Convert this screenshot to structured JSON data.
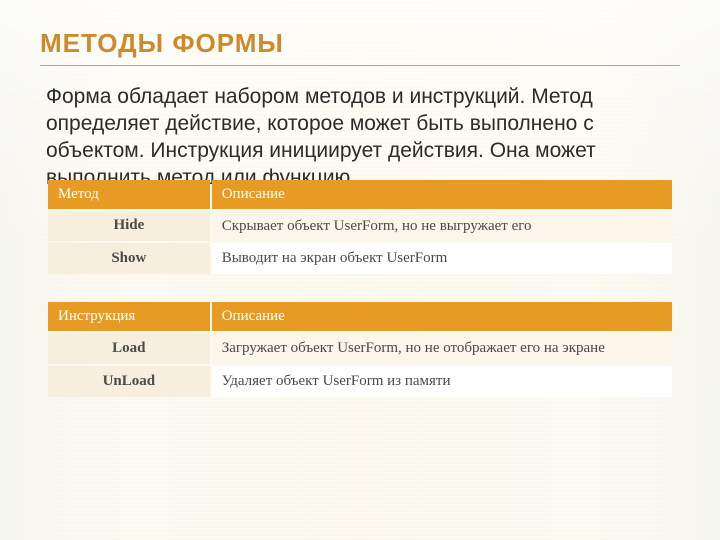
{
  "colors": {
    "title": "#ce8a2a",
    "rule": "#d9a33e",
    "header_bg": "#e79a24",
    "header_text": "#ffffff",
    "key_bg": "#f8eedd",
    "desc_bg_alt1": "#fbf5ea",
    "desc_bg_alt2": "#ffffff",
    "body_text": "#2b2b2b",
    "cell_text": "#4a4a4a"
  },
  "title": "Методы формы",
  "paragraph": "Форма обладает набором методов и инструкций. Метод определяет действие, которое может быть выполнено с объектом. Инструкция инициирует действия. Она может выполнить метод или функцию.",
  "tables": [
    {
      "columns": [
        "Метод",
        "Описание"
      ],
      "rows": [
        {
          "key": "Hide",
          "desc": "Скрывает объект UserForm, но не выгружает его"
        },
        {
          "key": "Show",
          "desc": "Выводит на экран объект UserForm"
        }
      ]
    },
    {
      "columns": [
        "Инструкция",
        "Описание"
      ],
      "rows": [
        {
          "key": "Load",
          "desc": "Загружает объект UserForm, но не отображает его на экране"
        },
        {
          "key": "UnLoad",
          "desc": "Удаляет объект UserForm из памяти"
        }
      ]
    }
  ]
}
